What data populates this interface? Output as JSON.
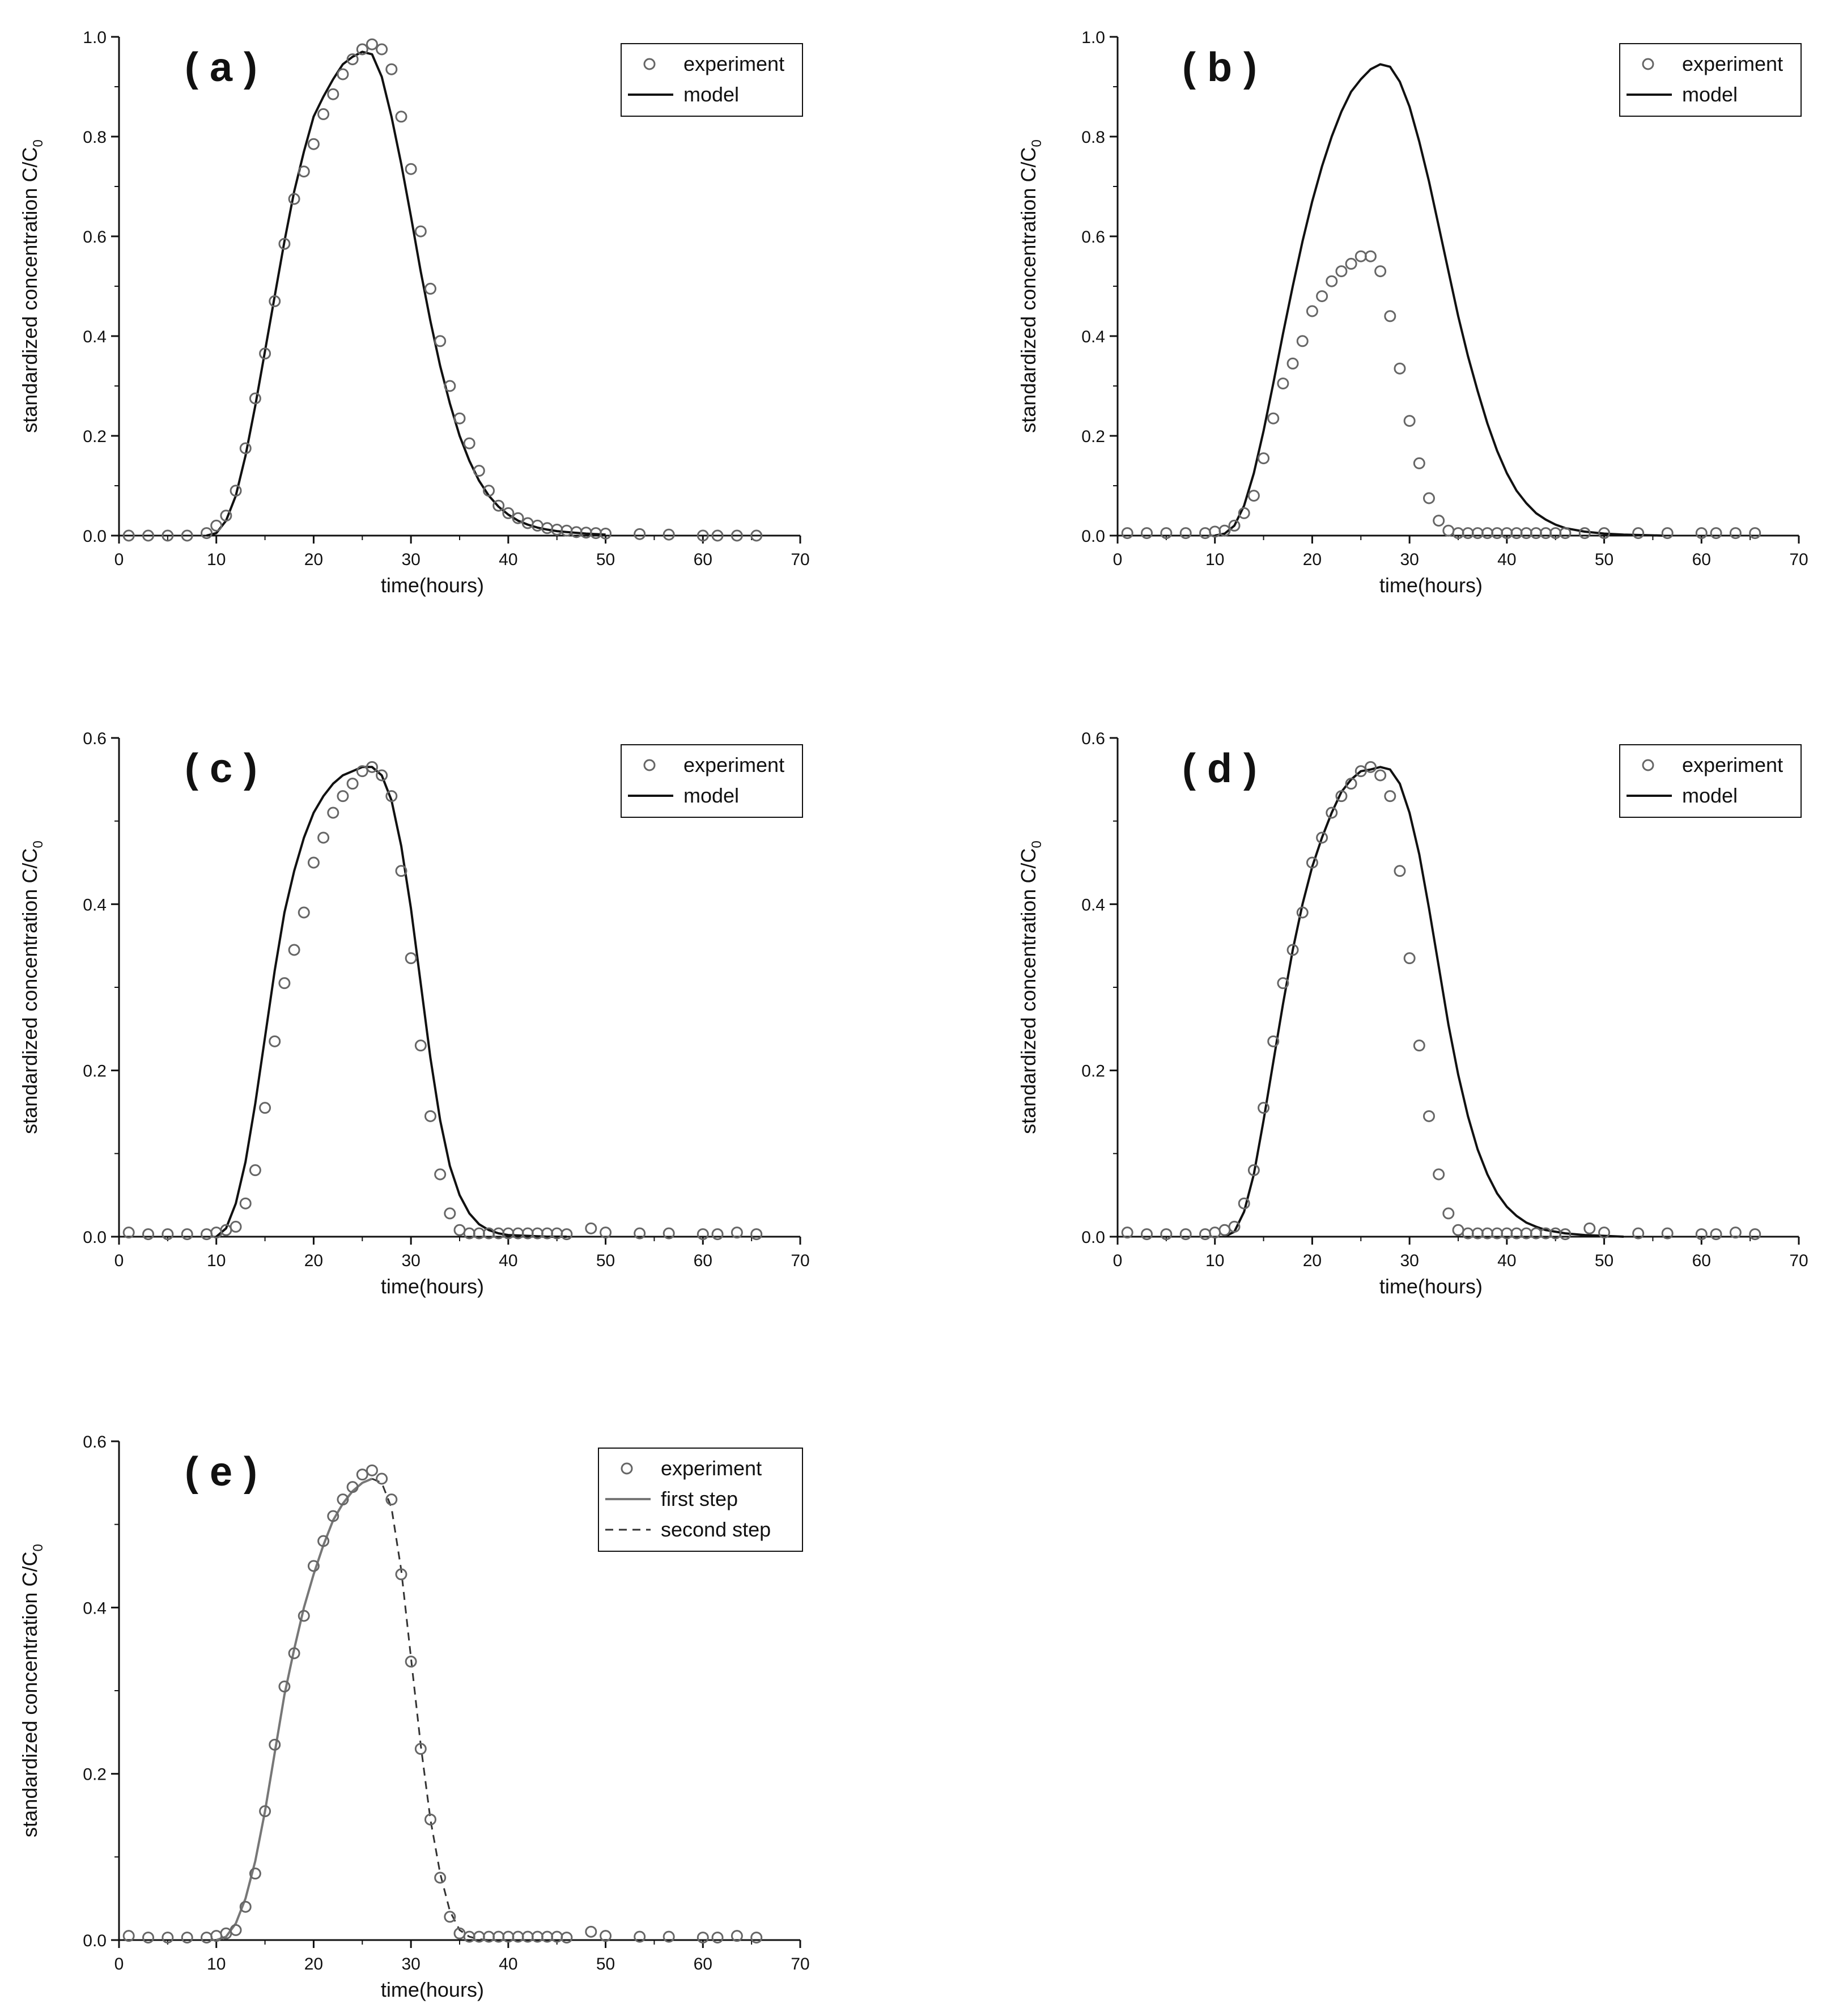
{
  "chart_data": [
    {
      "type": "scatter",
      "panel_label": "( a )",
      "xlabel": "time(hours)",
      "ylabel": "standardized concentration C/C",
      "ylabel_subscript": "0",
      "xlim": [
        0,
        70
      ],
      "ylim": [
        0,
        1.0
      ],
      "xticks": [
        "0",
        "10",
        "20",
        "30",
        "40",
        "50",
        "60",
        "70"
      ],
      "yticks": [
        "0.0",
        "0.2",
        "0.4",
        "0.6",
        "0.8",
        "1.0"
      ],
      "legend_position": "top-right",
      "series": [
        {
          "name": "experiment",
          "kind": "markers",
          "x": [
            1,
            3,
            5,
            7,
            9,
            10,
            11,
            12,
            13,
            14,
            15,
            16,
            17,
            18,
            19,
            20,
            21,
            22,
            23,
            24,
            25,
            26,
            27,
            28,
            29,
            30,
            31,
            32,
            33,
            34,
            35,
            36,
            37,
            38,
            39,
            40,
            41,
            42,
            43,
            44,
            45,
            46,
            47,
            48,
            49,
            50,
            53.5,
            56.5,
            60,
            61.5,
            63.5,
            65.5
          ],
          "y": [
            0,
            0,
            0,
            0,
            0.005,
            0.02,
            0.04,
            0.09,
            0.175,
            0.275,
            0.365,
            0.47,
            0.585,
            0.675,
            0.73,
            0.785,
            0.845,
            0.885,
            0.925,
            0.955,
            0.975,
            0.985,
            0.975,
            0.935,
            0.84,
            0.735,
            0.61,
            0.495,
            0.39,
            0.3,
            0.235,
            0.185,
            0.13,
            0.09,
            0.06,
            0.045,
            0.035,
            0.025,
            0.02,
            0.015,
            0.012,
            0.01,
            0.007,
            0.006,
            0.005,
            0.004,
            0.003,
            0.002,
            0,
            0,
            0,
            0
          ]
        },
        {
          "name": "model",
          "kind": "line",
          "style": "solid",
          "x": [
            9,
            10,
            11,
            12,
            13,
            14,
            15,
            16,
            17,
            18,
            19,
            20,
            21,
            22,
            23,
            24,
            25,
            26,
            27,
            28,
            29,
            30,
            31,
            32,
            33,
            34,
            35,
            36,
            37,
            38,
            39,
            40,
            41,
            42,
            43,
            44,
            45,
            46,
            48,
            50
          ],
          "y": [
            0,
            0.005,
            0.03,
            0.08,
            0.16,
            0.26,
            0.37,
            0.48,
            0.59,
            0.69,
            0.77,
            0.84,
            0.88,
            0.915,
            0.945,
            0.96,
            0.97,
            0.965,
            0.92,
            0.84,
            0.745,
            0.64,
            0.53,
            0.43,
            0.34,
            0.265,
            0.2,
            0.15,
            0.11,
            0.08,
            0.058,
            0.042,
            0.03,
            0.022,
            0.016,
            0.012,
            0.009,
            0.007,
            0.004,
            0.002
          ]
        }
      ]
    },
    {
      "type": "scatter",
      "panel_label": "( b )",
      "xlabel": "time(hours)",
      "ylabel": "standardized concentration C/C",
      "ylabel_subscript": "0",
      "xlim": [
        0,
        70
      ],
      "ylim": [
        0,
        1.0
      ],
      "xticks": [
        "0",
        "10",
        "20",
        "30",
        "40",
        "50",
        "60",
        "70"
      ],
      "yticks": [
        "0.0",
        "0.2",
        "0.4",
        "0.6",
        "0.8",
        "1.0"
      ],
      "legend_position": "top-right",
      "series": [
        {
          "name": "experiment",
          "kind": "markers",
          "x": [
            1,
            3,
            5,
            7,
            9,
            10,
            11,
            12,
            13,
            14,
            15,
            16,
            17,
            18,
            19,
            20,
            21,
            22,
            23,
            24,
            25,
            26,
            27,
            28,
            29,
            30,
            31,
            32,
            33,
            34,
            35,
            36,
            37,
            38,
            39,
            40,
            41,
            42,
            43,
            44,
            45,
            46,
            48,
            50,
            53.5,
            56.5,
            60,
            61.5,
            63.5,
            65.5
          ],
          "y": [
            0.005,
            0.005,
            0.005,
            0.005,
            0.005,
            0.008,
            0.01,
            0.02,
            0.045,
            0.08,
            0.155,
            0.235,
            0.305,
            0.345,
            0.39,
            0.45,
            0.48,
            0.51,
            0.53,
            0.545,
            0.56,
            0.56,
            0.53,
            0.44,
            0.335,
            0.23,
            0.145,
            0.075,
            0.03,
            0.01,
            0.005,
            0.005,
            0.005,
            0.005,
            0.005,
            0.005,
            0.005,
            0.005,
            0.005,
            0.005,
            0.005,
            0.005,
            0.005,
            0.005,
            0.005,
            0.005,
            0.005,
            0.005,
            0.005,
            0.005
          ]
        },
        {
          "name": "model",
          "kind": "line",
          "style": "solid",
          "x": [
            10,
            11,
            12,
            13,
            14,
            15,
            16,
            17,
            18,
            19,
            20,
            21,
            22,
            23,
            24,
            25,
            26,
            27,
            28,
            29,
            30,
            31,
            32,
            33,
            34,
            35,
            36,
            37,
            38,
            39,
            40,
            41,
            42,
            43,
            44,
            45,
            46,
            48,
            50,
            52,
            54,
            56
          ],
          "y": [
            0,
            0.004,
            0.02,
            0.06,
            0.125,
            0.21,
            0.305,
            0.405,
            0.5,
            0.59,
            0.67,
            0.74,
            0.8,
            0.85,
            0.89,
            0.915,
            0.935,
            0.945,
            0.94,
            0.91,
            0.86,
            0.79,
            0.71,
            0.62,
            0.53,
            0.44,
            0.36,
            0.29,
            0.225,
            0.17,
            0.125,
            0.09,
            0.065,
            0.045,
            0.032,
            0.022,
            0.015,
            0.008,
            0.004,
            0.002,
            0.001,
            0
          ]
        }
      ]
    },
    {
      "type": "scatter",
      "panel_label": "( c )",
      "xlabel": "time(hours)",
      "ylabel": "standardized concentration C/C",
      "ylabel_subscript": "0",
      "xlim": [
        0,
        70
      ],
      "ylim": [
        0,
        0.6
      ],
      "xticks": [
        "0",
        "10",
        "20",
        "30",
        "40",
        "50",
        "60",
        "70"
      ],
      "yticks": [
        "0.0",
        "0.2",
        "0.4",
        "0.6"
      ],
      "legend_position": "top-right",
      "series": [
        {
          "name": "experiment",
          "kind": "markers",
          "x": [
            1,
            3,
            5,
            7,
            9,
            10,
            11,
            12,
            13,
            14,
            15,
            16,
            17,
            18,
            19,
            20,
            21,
            22,
            23,
            24,
            25,
            26,
            27,
            28,
            29,
            30,
            31,
            32,
            33,
            34,
            35,
            36,
            37,
            38,
            39,
            40,
            41,
            42,
            43,
            44,
            45,
            46,
            48.5,
            50,
            53.5,
            56.5,
            60,
            61.5,
            63.5,
            65.5
          ],
          "y": [
            0.005,
            0.003,
            0.003,
            0.003,
            0.003,
            0.005,
            0.008,
            0.012,
            0.04,
            0.08,
            0.155,
            0.235,
            0.305,
            0.345,
            0.39,
            0.45,
            0.48,
            0.51,
            0.53,
            0.545,
            0.56,
            0.565,
            0.555,
            0.53,
            0.44,
            0.335,
            0.23,
            0.145,
            0.075,
            0.028,
            0.008,
            0.004,
            0.004,
            0.004,
            0.004,
            0.004,
            0.004,
            0.004,
            0.004,
            0.004,
            0.004,
            0.003,
            0.01,
            0.005,
            0.004,
            0.004,
            0.003,
            0.003,
            0.005,
            0.003
          ]
        },
        {
          "name": "model",
          "kind": "line",
          "style": "solid",
          "x": [
            10,
            11,
            12,
            13,
            14,
            15,
            16,
            17,
            18,
            19,
            20,
            21,
            22,
            23,
            24,
            25,
            26,
            27,
            28,
            29,
            30,
            31,
            32,
            33,
            34,
            35,
            36,
            37,
            38,
            39,
            40,
            42,
            44,
            46
          ],
          "y": [
            0,
            0.01,
            0.04,
            0.09,
            0.16,
            0.24,
            0.32,
            0.39,
            0.44,
            0.48,
            0.51,
            0.53,
            0.545,
            0.555,
            0.56,
            0.565,
            0.565,
            0.555,
            0.525,
            0.47,
            0.395,
            0.305,
            0.215,
            0.14,
            0.085,
            0.05,
            0.028,
            0.015,
            0.008,
            0.004,
            0.002,
            0.001,
            0,
            0
          ]
        }
      ]
    },
    {
      "type": "scatter",
      "panel_label": "( d )",
      "xlabel": "time(hours)",
      "ylabel": "standardized concentration C/C",
      "ylabel_subscript": "0",
      "xlim": [
        0,
        70
      ],
      "ylim": [
        0,
        0.6
      ],
      "xticks": [
        "0",
        "10",
        "20",
        "30",
        "40",
        "50",
        "60",
        "70"
      ],
      "yticks": [
        "0.0",
        "0.2",
        "0.4",
        "0.6"
      ],
      "legend_position": "top-right",
      "series": [
        {
          "name": "experiment",
          "kind": "markers",
          "x": [
            1,
            3,
            5,
            7,
            9,
            10,
            11,
            12,
            13,
            14,
            15,
            16,
            17,
            18,
            19,
            20,
            21,
            22,
            23,
            24,
            25,
            26,
            27,
            28,
            29,
            30,
            31,
            32,
            33,
            34,
            35,
            36,
            37,
            38,
            39,
            40,
            41,
            42,
            43,
            44,
            45,
            46,
            48.5,
            50,
            53.5,
            56.5,
            60,
            61.5,
            63.5,
            65.5
          ],
          "y": [
            0.005,
            0.003,
            0.003,
            0.003,
            0.003,
            0.005,
            0.008,
            0.012,
            0.04,
            0.08,
            0.155,
            0.235,
            0.305,
            0.345,
            0.39,
            0.45,
            0.48,
            0.51,
            0.53,
            0.545,
            0.56,
            0.565,
            0.555,
            0.53,
            0.44,
            0.335,
            0.23,
            0.145,
            0.075,
            0.028,
            0.008,
            0.004,
            0.004,
            0.004,
            0.004,
            0.004,
            0.004,
            0.004,
            0.004,
            0.004,
            0.004,
            0.003,
            0.01,
            0.005,
            0.004,
            0.004,
            0.003,
            0.003,
            0.005,
            0.003
          ]
        },
        {
          "name": "model",
          "kind": "line",
          "style": "solid",
          "x": [
            11,
            12,
            13,
            14,
            15,
            16,
            17,
            18,
            19,
            20,
            21,
            22,
            23,
            24,
            25,
            26,
            27,
            28,
            29,
            30,
            31,
            32,
            33,
            34,
            35,
            36,
            37,
            38,
            39,
            40,
            41,
            42,
            43,
            44,
            46,
            48,
            50,
            52
          ],
          "y": [
            0,
            0.006,
            0.03,
            0.075,
            0.14,
            0.21,
            0.28,
            0.345,
            0.4,
            0.445,
            0.48,
            0.51,
            0.535,
            0.55,
            0.56,
            0.562,
            0.565,
            0.562,
            0.545,
            0.51,
            0.46,
            0.395,
            0.325,
            0.255,
            0.195,
            0.145,
            0.105,
            0.075,
            0.052,
            0.036,
            0.025,
            0.017,
            0.012,
            0.008,
            0.004,
            0.002,
            0.001,
            0
          ]
        }
      ]
    },
    {
      "type": "scatter",
      "panel_label": "( e )",
      "xlabel": "time(hours)",
      "ylabel": "standardized concentration C/C",
      "ylabel_subscript": "0",
      "xlim": [
        0,
        70
      ],
      "ylim": [
        0,
        0.6
      ],
      "xticks": [
        "0",
        "10",
        "20",
        "30",
        "40",
        "50",
        "60",
        "70"
      ],
      "yticks": [
        "0.0",
        "0.2",
        "0.4",
        "0.6"
      ],
      "legend_position": "top-right",
      "series": [
        {
          "name": "experiment",
          "kind": "markers",
          "x": [
            1,
            3,
            5,
            7,
            9,
            10,
            11,
            12,
            13,
            14,
            15,
            16,
            17,
            18,
            19,
            20,
            21,
            22,
            23,
            24,
            25,
            26,
            27,
            28,
            29,
            30,
            31,
            32,
            33,
            34,
            35,
            36,
            37,
            38,
            39,
            40,
            41,
            42,
            43,
            44,
            45,
            46,
            48.5,
            50,
            53.5,
            56.5,
            60,
            61.5,
            63.5,
            65.5
          ],
          "y": [
            0.005,
            0.003,
            0.003,
            0.003,
            0.003,
            0.005,
            0.008,
            0.012,
            0.04,
            0.08,
            0.155,
            0.235,
            0.305,
            0.345,
            0.39,
            0.45,
            0.48,
            0.51,
            0.53,
            0.545,
            0.56,
            0.565,
            0.555,
            0.53,
            0.44,
            0.335,
            0.23,
            0.145,
            0.075,
            0.028,
            0.008,
            0.004,
            0.004,
            0.004,
            0.004,
            0.004,
            0.004,
            0.004,
            0.004,
            0.004,
            0.004,
            0.003,
            0.01,
            0.005,
            0.004,
            0.004,
            0.003,
            0.003,
            0.005,
            0.003
          ]
        },
        {
          "name": "first step",
          "kind": "line",
          "style": "solid-gray",
          "x": [
            10,
            11,
            12,
            13,
            14,
            15,
            16,
            17,
            18,
            19,
            20,
            21,
            22,
            23,
            24,
            25,
            26
          ],
          "y": [
            0,
            0.004,
            0.02,
            0.05,
            0.095,
            0.155,
            0.225,
            0.295,
            0.35,
            0.4,
            0.44,
            0.475,
            0.505,
            0.525,
            0.54,
            0.55,
            0.555
          ]
        },
        {
          "name": "second step",
          "kind": "line",
          "style": "dashed",
          "x": [
            26,
            27,
            28,
            29,
            30,
            31,
            32,
            33,
            34,
            35,
            36,
            37,
            38
          ],
          "y": [
            0.555,
            0.55,
            0.52,
            0.445,
            0.34,
            0.235,
            0.145,
            0.08,
            0.035,
            0.012,
            0.004,
            0.001,
            0
          ]
        }
      ]
    }
  ]
}
